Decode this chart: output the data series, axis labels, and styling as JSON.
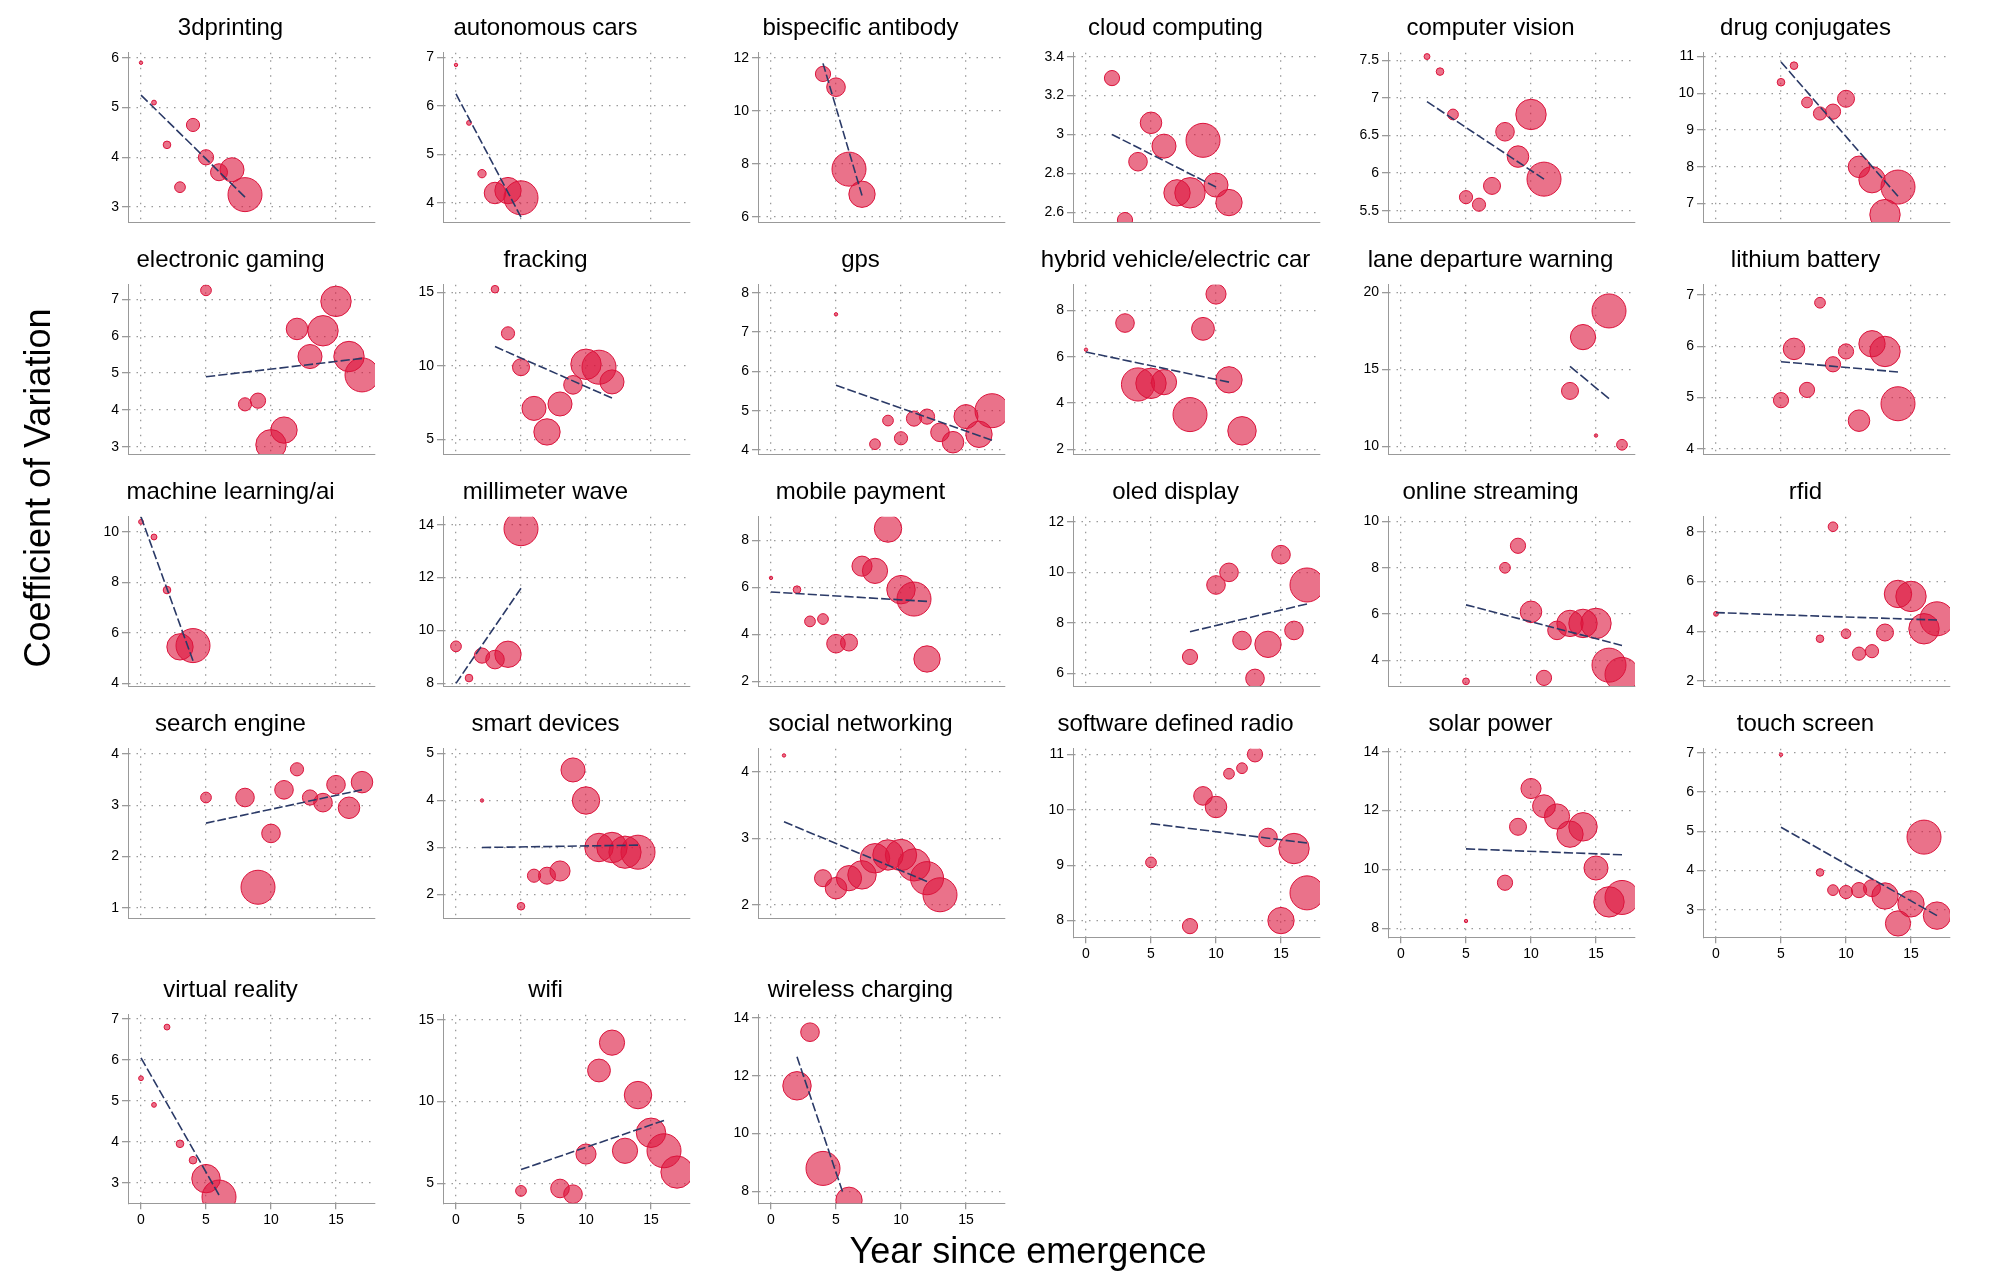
{
  "chart_data": [
    {
      "type": "bubble",
      "title": "3dprinting",
      "xlim": [
        -1,
        18
      ],
      "xticks": [
        0,
        5,
        10,
        15
      ],
      "ylim": [
        2.7,
        6.1
      ],
      "yticks": [
        3,
        4,
        5,
        6
      ],
      "grid": true,
      "tick_labels": "y",
      "series": [
        {
          "type": "bubble",
          "marker": "circle",
          "color": "#dc143c",
          "x": [
            0,
            1,
            2,
            3,
            4,
            5,
            6,
            7,
            8
          ],
          "values": [
            5.9,
            5.1,
            4.25,
            3.4,
            4.65,
            4.0,
            3.7,
            3.75,
            3.25
          ],
          "sizes": [
            0.01,
            0.02,
            0.05,
            0.1,
            0.15,
            0.2,
            0.25,
            0.5,
            1
          ]
        },
        {
          "type": "line",
          "color": "#2b3a67",
          "line_style": "dashed",
          "x": [
            0,
            8
          ],
          "values": [
            5.25,
            3.2
          ]
        }
      ]
    },
    {
      "type": "bubble",
      "title": "autonomous cars",
      "xlim": [
        -1,
        18
      ],
      "xticks": [
        0,
        5,
        10,
        15
      ],
      "ylim": [
        3.6,
        7.1
      ],
      "yticks": [
        4,
        5,
        6,
        7
      ],
      "grid": true,
      "tick_labels": "y",
      "series": [
        {
          "type": "bubble",
          "marker": "circle",
          "color": "#dc143c",
          "x": [
            0,
            1,
            2,
            3,
            4,
            5
          ],
          "values": [
            6.85,
            5.65,
            4.6,
            4.2,
            4.25,
            4.1
          ],
          "sizes": [
            0.01,
            0.02,
            0.06,
            0.4,
            0.6,
            1
          ]
        },
        {
          "type": "line",
          "color": "#2b3a67",
          "line_style": "dashed",
          "x": [
            0,
            5
          ],
          "values": [
            6.25,
            3.7
          ]
        }
      ]
    },
    {
      "type": "bubble",
      "title": "bispecific antibody",
      "xlim": [
        -1,
        18
      ],
      "xticks": [
        0,
        5,
        10,
        15
      ],
      "ylim": [
        5.8,
        12.2
      ],
      "yticks": [
        6,
        8,
        10,
        12
      ],
      "grid": true,
      "tick_labels": "y",
      "series": [
        {
          "type": "bubble",
          "marker": "circle",
          "color": "#dc143c",
          "x": [
            4,
            5,
            6,
            7
          ],
          "values": [
            11.4,
            10.9,
            7.8,
            6.85
          ],
          "sizes": [
            0.2,
            0.3,
            1,
            0.6
          ]
        },
        {
          "type": "line",
          "color": "#2b3a67",
          "line_style": "dashed",
          "x": [
            4,
            7
          ],
          "values": [
            11.8,
            6.8
          ]
        }
      ]
    },
    {
      "type": "bubble",
      "title": "cloud computing",
      "xlim": [
        -1,
        18
      ],
      "xticks": [
        0,
        5,
        10,
        15
      ],
      "ylim": [
        2.55,
        3.42
      ],
      "yticks": [
        2.6,
        2.8,
        3,
        3.2,
        3.4
      ],
      "grid": true,
      "tick_labels": "y",
      "series": [
        {
          "type": "bubble",
          "marker": "circle",
          "color": "#dc143c",
          "x": [
            2,
            3,
            4,
            5,
            6,
            7,
            8,
            9,
            10,
            11
          ],
          "values": [
            3.29,
            2.56,
            2.86,
            3.06,
            2.94,
            2.7,
            2.7,
            2.97,
            2.74,
            2.65
          ],
          "sizes": [
            0.2,
            0.2,
            0.3,
            0.4,
            0.5,
            0.6,
            0.8,
            1,
            0.5,
            0.6
          ]
        },
        {
          "type": "line",
          "color": "#2b3a67",
          "line_style": "dashed",
          "x": [
            2,
            10
          ],
          "values": [
            3.0,
            2.73
          ]
        }
      ]
    },
    {
      "type": "bubble",
      "title": "computer vision",
      "xlim": [
        -1,
        18
      ],
      "xticks": [
        0,
        5,
        10,
        15
      ],
      "ylim": [
        5.35,
        7.6
      ],
      "yticks": [
        5.5,
        6,
        6.5,
        7,
        7.5
      ],
      "grid": true,
      "tick_labels": "y",
      "series": [
        {
          "type": "bubble",
          "marker": "circle",
          "color": "#dc143c",
          "x": [
            2,
            3,
            4,
            5,
            6,
            7,
            8,
            9,
            10,
            11
          ],
          "values": [
            7.55,
            7.35,
            6.78,
            5.68,
            5.58,
            5.83,
            6.55,
            6.22,
            6.78,
            5.92
          ],
          "sizes": [
            0.03,
            0.05,
            0.1,
            0.15,
            0.15,
            0.25,
            0.3,
            0.4,
            0.8,
            1
          ]
        },
        {
          "type": "line",
          "color": "#2b3a67",
          "line_style": "dashed",
          "x": [
            2,
            11
          ],
          "values": [
            6.95,
            5.92
          ]
        }
      ]
    },
    {
      "type": "bubble",
      "title": "drug conjugates",
      "xlim": [
        -1,
        18
      ],
      "xticks": [
        0,
        5,
        10,
        15
      ],
      "ylim": [
        6.5,
        11.1
      ],
      "yticks": [
        7,
        8,
        9,
        10,
        11
      ],
      "grid": true,
      "tick_labels": "y",
      "series": [
        {
          "type": "bubble",
          "marker": "circle",
          "color": "#dc143c",
          "x": [
            5,
            6,
            7,
            8,
            9,
            10,
            11,
            12,
            13,
            14
          ],
          "values": [
            10.3,
            10.75,
            9.75,
            9.45,
            9.5,
            9.85,
            8.0,
            7.65,
            6.7,
            7.45
          ],
          "sizes": [
            0.05,
            0.05,
            0.1,
            0.15,
            0.2,
            0.25,
            0.4,
            0.6,
            0.8,
            1
          ]
        },
        {
          "type": "line",
          "color": "#2b3a67",
          "line_style": "dashed",
          "x": [
            5,
            14
          ],
          "values": [
            10.85,
            7.2
          ]
        }
      ]
    },
    {
      "type": "bubble",
      "title": "electronic gaming",
      "xlim": [
        -1,
        18
      ],
      "xticks": [
        0,
        5,
        10,
        15
      ],
      "ylim": [
        2.8,
        7.4
      ],
      "yticks": [
        3,
        4,
        5,
        6,
        7
      ],
      "grid": true,
      "tick_labels": "y",
      "series": [
        {
          "type": "bubble",
          "marker": "circle",
          "color": "#dc143c",
          "x": [
            5,
            8,
            9,
            10,
            11,
            12,
            13,
            14,
            15,
            16,
            17
          ],
          "values": [
            7.25,
            4.15,
            4.25,
            3.05,
            3.45,
            6.2,
            5.45,
            6.15,
            6.95,
            5.45,
            4.95
          ],
          "sizes": [
            0.1,
            0.15,
            0.2,
            0.8,
            0.6,
            0.4,
            0.5,
            0.8,
            0.8,
            0.8,
            1
          ]
        },
        {
          "type": "line",
          "color": "#2b3a67",
          "line_style": "dashed",
          "x": [
            5,
            17
          ],
          "values": [
            4.9,
            5.4
          ]
        }
      ]
    },
    {
      "type": "bubble",
      "title": "fracking",
      "xlim": [
        -1,
        18
      ],
      "xticks": [
        0,
        5,
        10,
        15
      ],
      "ylim": [
        4,
        15.5
      ],
      "yticks": [
        5,
        10,
        15
      ],
      "grid": true,
      "tick_labels": "y",
      "series": [
        {
          "type": "bubble",
          "marker": "circle",
          "color": "#dc143c",
          "x": [
            3,
            4,
            5,
            6,
            7,
            8,
            9,
            10,
            11,
            12
          ],
          "values": [
            15.2,
            12.2,
            9.9,
            7.1,
            5.5,
            7.4,
            8.7,
            10.1,
            9.9,
            8.9
          ],
          "sizes": [
            0.05,
            0.15,
            0.25,
            0.5,
            0.6,
            0.5,
            0.3,
            0.8,
            1,
            0.5
          ]
        },
        {
          "type": "line",
          "color": "#2b3a67",
          "line_style": "dashed",
          "x": [
            3,
            12
          ],
          "values": [
            11.3,
            7.8
          ]
        }
      ]
    },
    {
      "type": "bubble",
      "title": "gps",
      "xlim": [
        -1,
        18
      ],
      "xticks": [
        0,
        5,
        10,
        15
      ],
      "ylim": [
        3.9,
        8.2
      ],
      "yticks": [
        4,
        5,
        6,
        7,
        8
      ],
      "grid": true,
      "tick_labels": "y",
      "series": [
        {
          "type": "bubble",
          "marker": "circle",
          "color": "#dc143c",
          "x": [
            5,
            8,
            9,
            10,
            11,
            12,
            13,
            14,
            15,
            16,
            17
          ],
          "values": [
            7.45,
            4.15,
            4.75,
            4.3,
            4.8,
            4.85,
            4.45,
            4.2,
            4.85,
            4.4,
            5.0
          ],
          "sizes": [
            0.01,
            0.1,
            0.1,
            0.15,
            0.2,
            0.2,
            0.3,
            0.4,
            0.5,
            0.6,
            1
          ]
        },
        {
          "type": "line",
          "color": "#2b3a67",
          "line_style": "dashed",
          "x": [
            5,
            17
          ],
          "values": [
            5.65,
            4.25
          ]
        }
      ]
    },
    {
      "type": "bubble",
      "title": "hybrid vehicle/electric car",
      "xlim": [
        -1,
        18
      ],
      "xticks": [
        0,
        5,
        10,
        15
      ],
      "ylim": [
        1.8,
        9.1
      ],
      "yticks": [
        2,
        4,
        6,
        8
      ],
      "grid": true,
      "tick_labels": "y",
      "series": [
        {
          "type": "bubble",
          "marker": "circle",
          "color": "#dc143c",
          "x": [
            0,
            3,
            4,
            5,
            6,
            8,
            9,
            10,
            11,
            12
          ],
          "values": [
            6.3,
            7.45,
            4.8,
            4.85,
            4.9,
            3.5,
            7.2,
            8.7,
            5.0,
            2.8
          ],
          "sizes": [
            0.01,
            0.3,
            0.95,
            0.8,
            0.55,
            1,
            0.45,
            0.35,
            0.6,
            0.7
          ]
        },
        {
          "type": "line",
          "color": "#2b3a67",
          "line_style": "dashed",
          "x": [
            0,
            11
          ],
          "values": [
            6.2,
            4.9
          ]
        }
      ]
    },
    {
      "type": "bubble",
      "title": "lane departure warning",
      "xlim": [
        -1,
        18
      ],
      "xticks": [
        0,
        5,
        10,
        15
      ],
      "ylim": [
        9.5,
        20.5
      ],
      "yticks": [
        10,
        15,
        20
      ],
      "grid": true,
      "tick_labels": "y",
      "series": [
        {
          "type": "bubble",
          "marker": "circle",
          "color": "#dc143c",
          "x": [
            13,
            14,
            15,
            16,
            17
          ],
          "values": [
            13.6,
            17.1,
            10.7,
            18.8,
            10.1
          ],
          "sizes": [
            0.25,
            0.55,
            0.01,
            1,
            0.1
          ]
        },
        {
          "type": "line",
          "color": "#2b3a67",
          "line_style": "dashed",
          "x": [
            13,
            16
          ],
          "values": [
            15.2,
            13.1
          ]
        }
      ]
    },
    {
      "type": "bubble",
      "title": "lithium battery",
      "xlim": [
        -1,
        18
      ],
      "xticks": [
        0,
        5,
        10,
        15
      ],
      "ylim": [
        3.9,
        7.2
      ],
      "yticks": [
        4,
        5,
        6,
        7
      ],
      "grid": true,
      "tick_labels": "y",
      "series": [
        {
          "type": "bubble",
          "marker": "circle",
          "color": "#dc143c",
          "x": [
            5,
            6,
            7,
            8,
            9,
            10,
            11,
            12,
            13,
            14
          ],
          "values": [
            4.95,
            5.95,
            5.15,
            6.85,
            5.65,
            5.9,
            4.55,
            6.05,
            5.9,
            4.88
          ],
          "sizes": [
            0.2,
            0.4,
            0.2,
            0.1,
            0.2,
            0.2,
            0.4,
            0.6,
            0.8,
            1
          ]
        },
        {
          "type": "line",
          "color": "#2b3a67",
          "line_style": "dashed",
          "x": [
            5,
            14
          ],
          "values": [
            5.7,
            5.5
          ]
        }
      ]
    },
    {
      "type": "bubble",
      "title": "machine learning/ai",
      "xlim": [
        -1,
        18
      ],
      "xticks": [
        0,
        5,
        10,
        15
      ],
      "ylim": [
        3.9,
        10.6
      ],
      "yticks": [
        4,
        6,
        8,
        10
      ],
      "grid": true,
      "tick_labels": "y",
      "series": [
        {
          "type": "bubble",
          "marker": "circle",
          "color": "#dc143c",
          "x": [
            0,
            1,
            2,
            3,
            4
          ],
          "values": [
            10.4,
            9.8,
            7.7,
            5.45,
            5.5
          ],
          "sizes": [
            0.02,
            0.03,
            0.05,
            0.6,
            1
          ]
        },
        {
          "type": "line",
          "color": "#2b3a67",
          "line_style": "dashed",
          "x": [
            0,
            4
          ],
          "values": [
            10.6,
            4.9
          ]
        }
      ]
    },
    {
      "type": "bubble",
      "title": "millimeter wave",
      "xlim": [
        -1,
        18
      ],
      "xticks": [
        0,
        5,
        10,
        15
      ],
      "ylim": [
        7.9,
        14.3
      ],
      "yticks": [
        8,
        10,
        12,
        14
      ],
      "grid": true,
      "tick_labels": "y",
      "series": [
        {
          "type": "bubble",
          "marker": "circle",
          "color": "#dc143c",
          "x": [
            0,
            1,
            2,
            3,
            4,
            5
          ],
          "values": [
            9.4,
            8.2,
            9.05,
            8.9,
            9.1,
            13.85
          ],
          "sizes": [
            0.1,
            0.05,
            0.2,
            0.3,
            0.6,
            1
          ]
        },
        {
          "type": "line",
          "color": "#2b3a67",
          "line_style": "dashed",
          "x": [
            0,
            5
          ],
          "values": [
            8.0,
            11.6
          ]
        }
      ]
    },
    {
      "type": "bubble",
      "title": "mobile payment",
      "xlim": [
        -1,
        18
      ],
      "xticks": [
        0,
        5,
        10,
        15
      ],
      "ylim": [
        1.8,
        9
      ],
      "yticks": [
        2,
        4,
        6,
        8
      ],
      "grid": true,
      "tick_labels": "y",
      "series": [
        {
          "type": "bubble",
          "marker": "circle",
          "color": "#dc143c",
          "x": [
            0,
            2,
            3,
            4,
            5,
            6,
            7,
            8,
            9,
            10,
            11,
            12
          ],
          "values": [
            6.4,
            5.9,
            4.55,
            4.65,
            3.6,
            3.65,
            6.9,
            6.7,
            8.5,
            5.9,
            5.5,
            2.95
          ],
          "sizes": [
            0.01,
            0.05,
            0.1,
            0.1,
            0.3,
            0.25,
            0.35,
            0.55,
            0.65,
            0.7,
            1,
            0.6
          ]
        },
        {
          "type": "line",
          "color": "#2b3a67",
          "line_style": "dashed",
          "x": [
            0,
            12
          ],
          "values": [
            5.8,
            5.4
          ]
        }
      ]
    },
    {
      "type": "bubble",
      "title": "oled display",
      "xlim": [
        -1,
        18
      ],
      "xticks": [
        0,
        5,
        10,
        15
      ],
      "ylim": [
        5.5,
        12.2
      ],
      "yticks": [
        6,
        8,
        10,
        12
      ],
      "grid": true,
      "tick_labels": "y",
      "series": [
        {
          "type": "bubble",
          "marker": "circle",
          "color": "#dc143c",
          "x": [
            8,
            10,
            11,
            12,
            13,
            14,
            15,
            16,
            17
          ],
          "values": [
            6.65,
            9.5,
            10.0,
            7.3,
            5.8,
            7.15,
            10.7,
            7.7,
            9.5
          ],
          "sizes": [
            0.2,
            0.3,
            0.3,
            0.3,
            0.3,
            0.6,
            0.3,
            0.3,
            1
          ]
        },
        {
          "type": "line",
          "color": "#2b3a67",
          "line_style": "dashed",
          "x": [
            8,
            17
          ],
          "values": [
            7.65,
            8.75
          ]
        }
      ]
    },
    {
      "type": "bubble",
      "title": "online streaming",
      "xlim": [
        -1,
        18
      ],
      "xticks": [
        0,
        5,
        10,
        15
      ],
      "ylim": [
        2.9,
        10.2
      ],
      "yticks": [
        4,
        6,
        8,
        10
      ],
      "grid": true,
      "tick_labels": "y",
      "series": [
        {
          "type": "bubble",
          "marker": "circle",
          "color": "#dc143c",
          "x": [
            5,
            8,
            9,
            10,
            11,
            12,
            13,
            14,
            15,
            16,
            17
          ],
          "values": [
            3.1,
            8.0,
            8.95,
            6.1,
            3.25,
            5.3,
            5.6,
            5.6,
            5.6,
            3.8,
            3.4
          ],
          "sizes": [
            0.04,
            0.1,
            0.2,
            0.4,
            0.2,
            0.3,
            0.6,
            0.7,
            0.8,
            1,
            1
          ]
        },
        {
          "type": "line",
          "color": "#2b3a67",
          "line_style": "dashed",
          "x": [
            5,
            17
          ],
          "values": [
            6.4,
            4.65
          ]
        }
      ]
    },
    {
      "type": "bubble",
      "title": "rfid",
      "xlim": [
        -1,
        18
      ],
      "xticks": [
        0,
        5,
        10,
        15
      ],
      "ylim": [
        1.8,
        8.6
      ],
      "yticks": [
        2,
        4,
        6,
        8
      ],
      "grid": true,
      "tick_labels": "y",
      "series": [
        {
          "type": "bubble",
          "marker": "circle",
          "color": "#dc143c",
          "x": [
            0,
            8,
            9,
            10,
            11,
            12,
            13,
            14,
            15,
            16,
            17
          ],
          "values": [
            4.7,
            3.7,
            8.2,
            3.9,
            3.1,
            3.2,
            3.95,
            5.5,
            5.4,
            4.1,
            4.5
          ],
          "sizes": [
            0.02,
            0.05,
            0.08,
            0.08,
            0.15,
            0.15,
            0.25,
            0.65,
            0.8,
            0.8,
            1
          ]
        },
        {
          "type": "line",
          "color": "#2b3a67",
          "line_style": "dashed",
          "x": [
            0,
            17
          ],
          "values": [
            4.75,
            4.45
          ]
        }
      ]
    },
    {
      "type": "bubble",
      "title": "search engine",
      "xlim": [
        -1,
        18
      ],
      "xticks": [
        0,
        5,
        10,
        15
      ],
      "ylim": [
        0.8,
        4.1
      ],
      "yticks": [
        1,
        2,
        3,
        4
      ],
      "grid": true,
      "tick_labels": "y",
      "series": [
        {
          "type": "bubble",
          "marker": "circle",
          "color": "#dc143c",
          "x": [
            5,
            8,
            9,
            10,
            11,
            12,
            13,
            14,
            15,
            16,
            17
          ],
          "values": [
            3.15,
            3.15,
            1.4,
            2.45,
            3.3,
            3.7,
            3.15,
            3.05,
            3.4,
            2.95,
            3.45
          ],
          "sizes": [
            0.1,
            0.3,
            1,
            0.3,
            0.3,
            0.15,
            0.2,
            0.3,
            0.3,
            0.4,
            0.4
          ]
        },
        {
          "type": "line",
          "color": "#2b3a67",
          "line_style": "dashed",
          "x": [
            5,
            17
          ],
          "values": [
            2.65,
            3.3
          ]
        }
      ]
    },
    {
      "type": "bubble",
      "title": "smart devices",
      "xlim": [
        -1,
        18
      ],
      "xticks": [
        0,
        5,
        10,
        15
      ],
      "ylim": [
        1.5,
        5.1
      ],
      "yticks": [
        2,
        3,
        4,
        5
      ],
      "grid": true,
      "tick_labels": "y",
      "series": [
        {
          "type": "bubble",
          "marker": "circle",
          "color": "#dc143c",
          "x": [
            2,
            5,
            6,
            7,
            8,
            9,
            10,
            11,
            12,
            13,
            14
          ],
          "values": [
            4.0,
            1.75,
            2.4,
            2.4,
            2.5,
            4.65,
            4.0,
            3.0,
            3.0,
            2.9,
            2.9
          ],
          "sizes": [
            0.01,
            0.05,
            0.15,
            0.25,
            0.35,
            0.5,
            0.65,
            0.7,
            0.8,
            0.9,
            1
          ]
        },
        {
          "type": "line",
          "color": "#2b3a67",
          "line_style": "dashed",
          "x": [
            2,
            14
          ],
          "values": [
            3.0,
            3.05
          ]
        }
      ]
    },
    {
      "type": "bubble",
      "title": "social networking",
      "xlim": [
        -1,
        18
      ],
      "xticks": [
        0,
        5,
        10,
        15
      ],
      "ylim": [
        1.8,
        4.35
      ],
      "yticks": [
        2,
        3,
        4
      ],
      "grid": true,
      "tick_labels": "y",
      "series": [
        {
          "type": "bubble",
          "marker": "circle",
          "color": "#dc143c",
          "x": [
            1,
            4,
            5,
            6,
            7,
            8,
            9,
            10,
            11,
            12,
            13
          ],
          "values": [
            4.25,
            2.4,
            2.25,
            2.4,
            2.45,
            2.7,
            2.75,
            2.75,
            2.6,
            2.4,
            2.15
          ],
          "sizes": [
            0.01,
            0.25,
            0.4,
            0.55,
            0.7,
            0.75,
            0.8,
            0.85,
            0.9,
            0.95,
            1
          ]
        },
        {
          "type": "line",
          "color": "#2b3a67",
          "line_style": "dashed",
          "x": [
            1,
            12
          ],
          "values": [
            3.25,
            2.35
          ]
        }
      ]
    },
    {
      "type": "bubble",
      "title": "software defined radio",
      "xlim": [
        -1,
        18
      ],
      "xticks": [
        0,
        5,
        10,
        15
      ],
      "ylim": [
        7.7,
        11.1
      ],
      "yticks": [
        8,
        9,
        10,
        11
      ],
      "grid": true,
      "series": [
        {
          "type": "bubble",
          "marker": "circle",
          "color": "#dc143c",
          "x": [
            5,
            8,
            9,
            10,
            11,
            12,
            13,
            14,
            15,
            16,
            17
          ],
          "values": [
            9.05,
            7.9,
            10.25,
            10.05,
            10.65,
            10.75,
            11.0,
            9.5,
            8.0,
            9.3,
            8.5
          ],
          "sizes": [
            0.1,
            0.2,
            0.3,
            0.4,
            0.1,
            0.1,
            0.2,
            0.3,
            0.6,
            0.8,
            1
          ]
        },
        {
          "type": "line",
          "color": "#2b3a67",
          "line_style": "dashed",
          "x": [
            5,
            17
          ],
          "values": [
            9.75,
            9.4
          ]
        }
      ]
    },
    {
      "type": "bubble",
      "title": "solar power",
      "xlim": [
        -1,
        18
      ],
      "xticks": [
        0,
        5,
        10,
        15
      ],
      "ylim": [
        7.7,
        14.1
      ],
      "yticks": [
        8,
        10,
        12,
        14
      ],
      "grid": true,
      "series": [
        {
          "type": "bubble",
          "marker": "circle",
          "color": "#dc143c",
          "x": [
            5,
            8,
            9,
            10,
            11,
            12,
            13,
            14,
            15,
            16,
            17
          ],
          "values": [
            8.25,
            9.55,
            11.45,
            12.75,
            12.15,
            11.8,
            11.2,
            11.45,
            10.05,
            8.9,
            9.05
          ],
          "sizes": [
            0.01,
            0.2,
            0.25,
            0.35,
            0.45,
            0.55,
            0.6,
            0.7,
            0.5,
            0.8,
            1
          ]
        },
        {
          "type": "line",
          "color": "#2b3a67",
          "line_style": "dashed",
          "x": [
            5,
            17
          ],
          "values": [
            10.7,
            10.5
          ]
        }
      ]
    },
    {
      "type": "bubble",
      "title": "touch screen",
      "xlim": [
        -1,
        18
      ],
      "xticks": [
        0,
        5,
        10,
        15
      ],
      "ylim": [
        2.3,
        7.1
      ],
      "yticks": [
        3,
        4,
        5,
        6,
        7
      ],
      "grid": true,
      "series": [
        {
          "type": "bubble",
          "marker": "circle",
          "color": "#dc143c",
          "x": [
            5,
            8,
            9,
            10,
            11,
            12,
            13,
            14,
            15,
            16,
            17
          ],
          "values": [
            6.95,
            3.95,
            3.5,
            3.45,
            3.5,
            3.55,
            3.35,
            2.65,
            3.15,
            4.85,
            2.85
          ],
          "sizes": [
            0.01,
            0.05,
            0.1,
            0.15,
            0.2,
            0.25,
            0.6,
            0.55,
            0.6,
            1,
            0.65
          ]
        },
        {
          "type": "line",
          "color": "#2b3a67",
          "line_style": "dashed",
          "x": [
            5,
            17
          ],
          "values": [
            5.1,
            2.85
          ]
        }
      ]
    },
    {
      "type": "bubble",
      "title": "virtual reality",
      "xlim": [
        -1,
        18
      ],
      "xticks": [
        0,
        5,
        10,
        15
      ],
      "ylim": [
        2.5,
        7.1
      ],
      "yticks": [
        3,
        4,
        5,
        6,
        7
      ],
      "grid": true,
      "series": [
        {
          "type": "bubble",
          "marker": "circle",
          "color": "#dc143c",
          "x": [
            0,
            1,
            2,
            3,
            4,
            5,
            6
          ],
          "values": [
            5.55,
            4.9,
            6.8,
            3.95,
            3.55,
            3.1,
            2.65
          ],
          "sizes": [
            0.02,
            0.02,
            0.03,
            0.05,
            0.05,
            0.7,
            1
          ]
        },
        {
          "type": "line",
          "color": "#2b3a67",
          "line_style": "dashed",
          "x": [
            0,
            6
          ],
          "values": [
            6.05,
            2.7
          ]
        }
      ]
    },
    {
      "type": "bubble",
      "title": "wifi",
      "xlim": [
        -1,
        18
      ],
      "xticks": [
        0,
        5,
        10,
        15
      ],
      "ylim": [
        3.8,
        15.3
      ],
      "yticks": [
        5,
        10,
        15
      ],
      "grid": true,
      "series": [
        {
          "type": "bubble",
          "marker": "circle",
          "color": "#dc143c",
          "x": [
            5,
            8,
            9,
            10,
            11,
            12,
            13,
            14,
            15,
            16,
            17
          ],
          "values": [
            4.55,
            4.7,
            4.35,
            6.8,
            11.9,
            13.6,
            7.0,
            10.4,
            8.1,
            7.0,
            5.7
          ],
          "sizes": [
            0.1,
            0.3,
            0.3,
            0.35,
            0.45,
            0.55,
            0.55,
            0.65,
            0.75,
            1,
            0.9
          ]
        },
        {
          "type": "line",
          "color": "#2b3a67",
          "line_style": "dashed",
          "x": [
            5,
            16
          ],
          "values": [
            5.85,
            8.85
          ]
        }
      ]
    },
    {
      "type": "bubble",
      "title": "wireless charging",
      "xlim": [
        -1,
        18
      ],
      "xticks": [
        0,
        5,
        10,
        15
      ],
      "ylim": [
        7.6,
        14.1
      ],
      "yticks": [
        8,
        10,
        12,
        14
      ],
      "grid": true,
      "series": [
        {
          "type": "bubble",
          "marker": "circle",
          "color": "#dc143c",
          "x": [
            2,
            3,
            4,
            6
          ],
          "values": [
            11.65,
            13.5,
            8.8,
            7.7
          ],
          "sizes": [
            0.7,
            0.3,
            1,
            0.6
          ]
        },
        {
          "type": "line",
          "color": "#2b3a67",
          "line_style": "dashed",
          "x": [
            2,
            5.5
          ],
          "values": [
            12.65,
            8.0
          ]
        }
      ]
    },
    {
      "type": "other",
      "xlabel": "Year since emergence",
      "ylabel": "Coefficient of Variation"
    }
  ]
}
